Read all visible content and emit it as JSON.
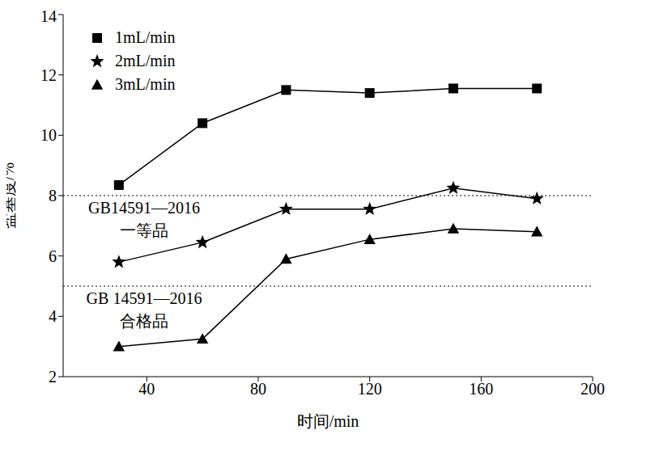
{
  "chart_data": {
    "type": "line",
    "x_label": "时间/min",
    "y_label": "盐基度/%",
    "x": [
      30,
      60,
      90,
      120,
      150,
      180
    ],
    "series": [
      {
        "name": "1mL/min",
        "color": "#000000",
        "marker": "square",
        "values": [
          8.35,
          10.4,
          11.5,
          11.4,
          11.55,
          11.55
        ]
      },
      {
        "name": "2mL/min",
        "color": "#000000",
        "marker": "star",
        "values": [
          5.8,
          6.45,
          7.55,
          7.55,
          8.25,
          7.9
        ]
      },
      {
        "name": "3mL/min",
        "color": "#000000",
        "marker": "triangle",
        "values": [
          3.0,
          3.25,
          5.9,
          6.55,
          6.9,
          6.8
        ]
      }
    ],
    "xlim": [
      10,
      200
    ],
    "xticks": [
      40,
      80,
      120,
      160,
      200
    ],
    "ylim": [
      2,
      14
    ],
    "yticks": [
      2,
      4,
      6,
      8,
      10,
      12,
      14
    ],
    "grid": false,
    "legend": "upper left",
    "annotations": [
      {
        "y": 8,
        "line_style": "dotted",
        "lines": [
          "GB14591—2016",
          "一等品"
        ]
      },
      {
        "y": 5,
        "line_style": "dotted",
        "lines": [
          "GB 14591—2016",
          "合格品"
        ]
      }
    ]
  }
}
